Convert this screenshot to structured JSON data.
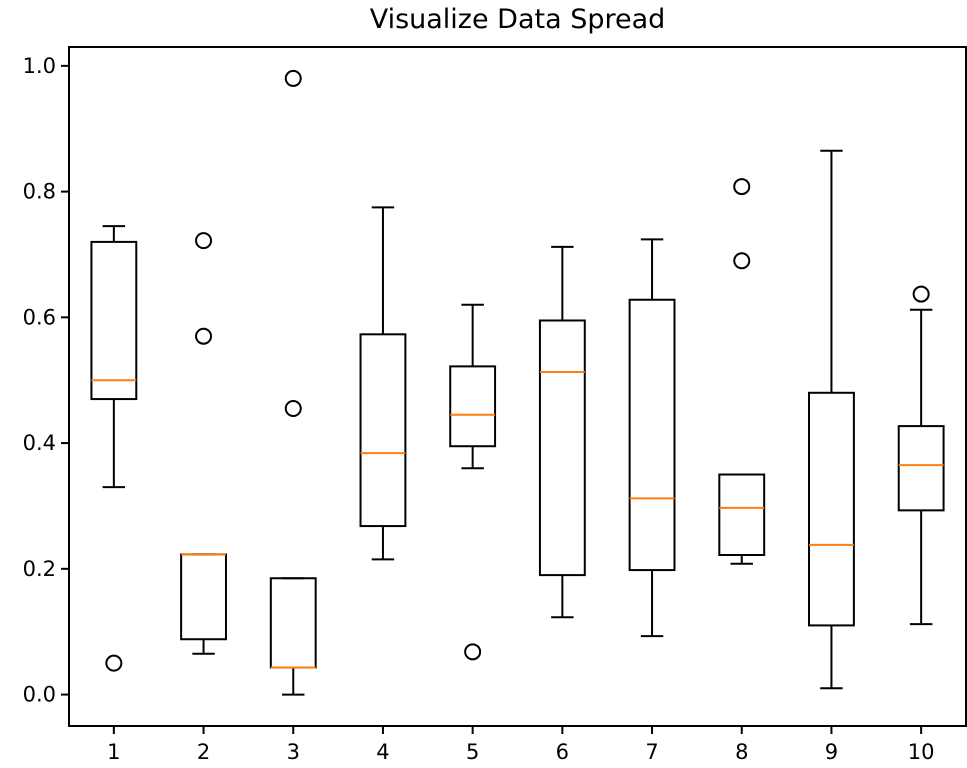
{
  "chart_data": {
    "type": "box",
    "title": "Visualize Data Spread",
    "xlabel": "",
    "ylabel": "",
    "categories": [
      "1",
      "2",
      "3",
      "4",
      "5",
      "6",
      "7",
      "8",
      "9",
      "10"
    ],
    "ylim": [
      -0.05,
      1.03
    ],
    "yticks": [
      "0.0",
      "0.2",
      "0.4",
      "0.6",
      "0.8",
      "1.0"
    ],
    "grid": false,
    "colors": {
      "box": "#000000",
      "median": "#ff7f0e",
      "outlier": "#000000"
    },
    "boxes": [
      {
        "label": "1",
        "whislo": 0.33,
        "q1": 0.47,
        "med": 0.5,
        "q3": 0.72,
        "whishi": 0.745,
        "fliers": [
          0.05
        ]
      },
      {
        "label": "2",
        "whislo": 0.065,
        "q1": 0.088,
        "med": 0.223,
        "q3": 0.223,
        "whishi": 0.223,
        "fliers": [
          0.57,
          0.722
        ]
      },
      {
        "label": "3",
        "whislo": 0.0,
        "q1": 0.043,
        "med": 0.043,
        "q3": 0.185,
        "whishi": 0.185,
        "fliers": [
          0.455,
          0.98
        ]
      },
      {
        "label": "4",
        "whislo": 0.215,
        "q1": 0.268,
        "med": 0.384,
        "q3": 0.573,
        "whishi": 0.775,
        "fliers": []
      },
      {
        "label": "5",
        "whislo": 0.36,
        "q1": 0.395,
        "med": 0.445,
        "q3": 0.522,
        "whishi": 0.62,
        "fliers": [
          0.068
        ]
      },
      {
        "label": "6",
        "whislo": 0.123,
        "q1": 0.19,
        "med": 0.513,
        "q3": 0.595,
        "whishi": 0.712,
        "fliers": []
      },
      {
        "label": "7",
        "whislo": 0.093,
        "q1": 0.198,
        "med": 0.312,
        "q3": 0.628,
        "whishi": 0.724,
        "fliers": []
      },
      {
        "label": "8",
        "whislo": 0.208,
        "q1": 0.222,
        "med": 0.297,
        "q3": 0.35,
        "whishi": 0.35,
        "fliers": [
          0.69,
          0.808
        ]
      },
      {
        "label": "9",
        "whislo": 0.01,
        "q1": 0.11,
        "med": 0.238,
        "q3": 0.48,
        "whishi": 0.865,
        "fliers": []
      },
      {
        "label": "10",
        "whislo": 0.112,
        "q1": 0.293,
        "med": 0.365,
        "q3": 0.427,
        "whishi": 0.612,
        "fliers": [
          0.637
        ]
      }
    ]
  }
}
